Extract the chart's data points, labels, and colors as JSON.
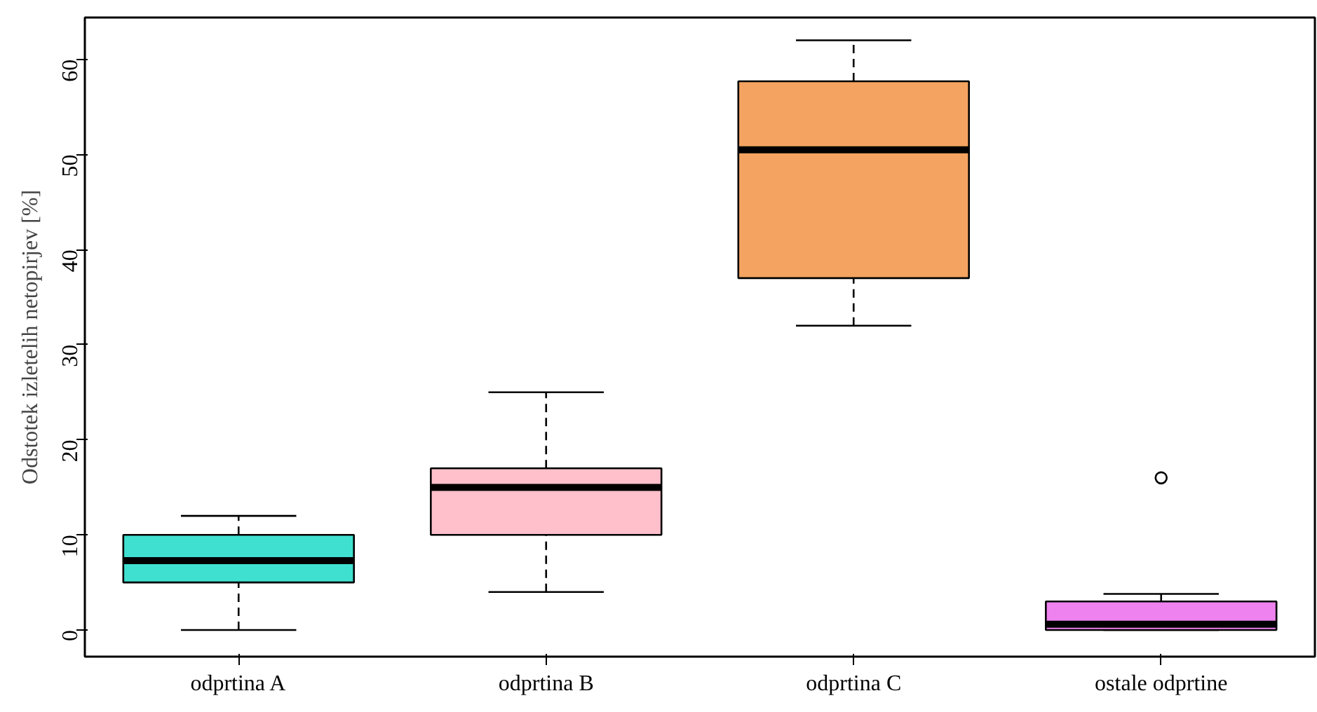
{
  "chart_data": {
    "type": "box",
    "ylabel": "Odstotek izletelih netopirjev [%]",
    "categories": [
      "odprtina A",
      "odprtina B",
      "odprtina C",
      "ostale odprtine"
    ],
    "colors": [
      "#40e0d0",
      "#ffc0cb",
      "#f4a460",
      "#ee82ee"
    ],
    "boxes": [
      {
        "low": 0,
        "q1": 5,
        "median": 7.3,
        "q3": 10,
        "high": 12
      },
      {
        "low": 4,
        "q1": 10,
        "median": 15,
        "q3": 17,
        "high": 25
      },
      {
        "low": 32,
        "q1": 37,
        "median": 50.5,
        "q3": 57.7,
        "high": 62
      },
      {
        "low": 0,
        "q1": 0,
        "median": 0.6,
        "q3": 3,
        "high": 3.8,
        "outliers": [
          16
        ]
      }
    ],
    "ylim": [
      -2.8,
      64.4
    ],
    "yticks": [
      0,
      10,
      20,
      30,
      40,
      50,
      60
    ]
  }
}
